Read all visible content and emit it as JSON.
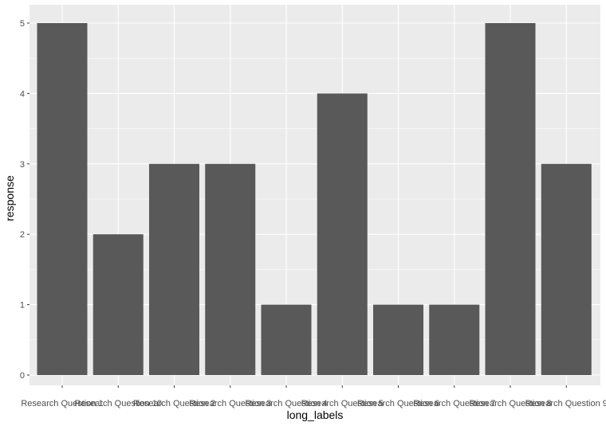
{
  "chart_data": {
    "type": "bar",
    "categories": [
      "Research Question 1",
      "Research Question 10",
      "Research Question 2",
      "Research Question 3",
      "Research Question 4",
      "Research Question 5",
      "Research Question 6",
      "Research Question 7",
      "Research Question 8",
      "Research Question 9"
    ],
    "values": [
      5,
      2,
      3,
      3,
      1,
      4,
      1,
      1,
      5,
      3
    ],
    "xlabel": "long_labels",
    "ylabel": "response",
    "ylim": [
      0,
      5
    ],
    "yticks": [
      0,
      1,
      2,
      3,
      4,
      5
    ],
    "grid": true,
    "colors": {
      "panel": "#ebebeb",
      "grid": "#ffffff",
      "bar": "#595959",
      "tick": "#4d4d4d",
      "title": "#000000"
    }
  }
}
